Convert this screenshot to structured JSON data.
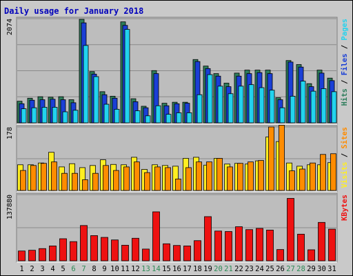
{
  "chart_data": {
    "type": "bar",
    "title": "Daily usage for January 2018",
    "categories": [
      "1",
      "2",
      "3",
      "4",
      "5",
      "6",
      "7",
      "8",
      "9",
      "10",
      "11",
      "12",
      "13",
      "14",
      "15",
      "16",
      "17",
      "18",
      "19",
      "20",
      "21",
      "22",
      "23",
      "24",
      "25",
      "26",
      "27",
      "28",
      "29",
      "30",
      "31"
    ],
    "weekend_days": [
      "6",
      "7",
      "13",
      "14",
      "20",
      "21",
      "27",
      "28"
    ],
    "panels": [
      {
        "id": "hits",
        "ytick": "2074",
        "ymax": 2074,
        "side_labels": [
          "Hits",
          "Files",
          "Pages"
        ],
        "series": [
          {
            "name": "Hits",
            "color": "#2e7d5b",
            "values": [
              430,
              490,
              520,
              510,
              520,
              460,
              2060,
              1020,
              620,
              530,
              2010,
              480,
              330,
              1040,
              390,
              410,
              410,
              1260,
              1130,
              980,
              790,
              990,
              1050,
              1050,
              1050,
              500,
              1240,
              1160,
              780,
              1050,
              890
            ]
          },
          {
            "name": "Files",
            "color": "#1a3fd6",
            "values": [
              380,
              450,
              460,
              470,
              460,
              400,
              1990,
              970,
              560,
              490,
              1940,
              420,
              300,
              980,
              340,
              380,
              390,
              1220,
              1080,
              930,
              720,
              930,
              980,
              1000,
              980,
              460,
              1210,
              1110,
              720,
              990,
              840
            ]
          },
          {
            "name": "Pages",
            "color": "#22d3ee",
            "values": [
              280,
              300,
              310,
              310,
              220,
              250,
              1540,
              920,
              370,
              270,
              1860,
              240,
              140,
              340,
              170,
              200,
              200,
              560,
              960,
              730,
              580,
              730,
              760,
              700,
              650,
              300,
              530,
              830,
              630,
              680,
              620
            ]
          }
        ]
      },
      {
        "id": "visits",
        "ytick": "178",
        "ymax": 178,
        "side_labels": [
          "Visits",
          "Sites"
        ],
        "series": [
          {
            "name": "Visits",
            "color": "#ffee22",
            "values": [
              72,
              72,
              77,
              107,
              66,
              75,
              64,
              70,
              86,
              73,
              72,
              93,
              59,
              72,
              70,
              68,
              90,
              93,
              71,
              90,
              74,
              76,
              74,
              83,
              150,
              137,
              77,
              68,
              72,
              72,
              78
            ]
          },
          {
            "name": "Sites",
            "color": "#ff8c00",
            "values": [
              56,
              70,
              76,
              80,
              48,
              48,
              30,
              48,
              70,
              56,
              66,
              80,
              50,
              66,
              64,
              32,
              64,
              80,
              80,
              90,
              66,
              76,
              80,
              84,
              178,
              183,
              55,
              60,
              77,
              101,
              103
            ]
          }
        ]
      },
      {
        "id": "kbytes",
        "ytick": "137880",
        "ymax": 137880,
        "side_labels": [
          "KBytes"
        ],
        "series": [
          {
            "name": "KBytes",
            "color": "#ee1111",
            "values": [
              20500,
              22000,
              25500,
              31000,
              46000,
              40000,
              73500,
              52500,
              48800,
              43500,
              32500,
              47000,
              24500,
              102000,
              35500,
              32000,
              31000,
              42000,
              92000,
              62000,
              61000,
              71000,
              65000,
              67500,
              64000,
              23500,
              130000,
              55500,
              23000,
              80000,
              66000
            ]
          }
        ]
      }
    ]
  }
}
